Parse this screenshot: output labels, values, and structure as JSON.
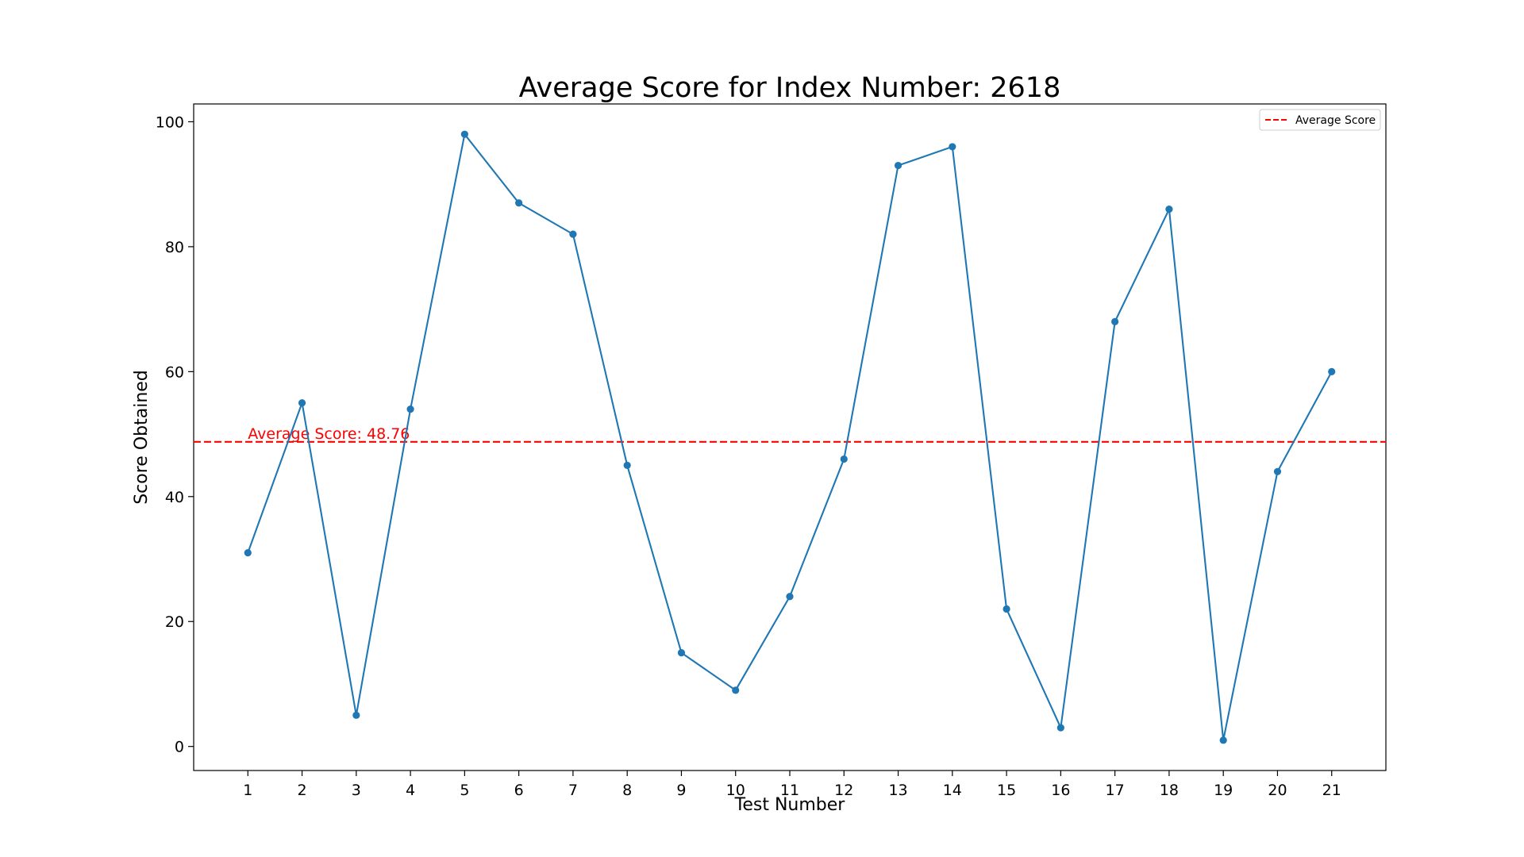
{
  "chart_data": {
    "type": "line",
    "title": "Average Score for Index Number: 2618",
    "xlabel": "Test Number",
    "ylabel": "Score Obtained",
    "x": [
      1,
      2,
      3,
      4,
      5,
      6,
      7,
      8,
      9,
      10,
      11,
      12,
      13,
      14,
      15,
      16,
      17,
      18,
      19,
      20,
      21
    ],
    "series": [
      {
        "values": [
          31,
          55,
          5,
          54,
          98,
          87,
          82,
          45,
          15,
          9,
          24,
          46,
          93,
          96,
          22,
          3,
          68,
          86,
          1,
          44,
          60
        ],
        "color": "#1f77b4",
        "marker": "circle"
      }
    ],
    "xlim": [
      0,
      22
    ],
    "ylim": [
      -3.85,
      102.85
    ],
    "xticks": [
      "1",
      "2",
      "3",
      "4",
      "5",
      "6",
      "7",
      "8",
      "9",
      "10",
      "11",
      "12",
      "13",
      "14",
      "15",
      "16",
      "17",
      "18",
      "19",
      "20",
      "21"
    ],
    "yticks": [
      "0",
      "20",
      "40",
      "60",
      "80",
      "100"
    ],
    "ytick_values": [
      0,
      20,
      40,
      60,
      80,
      100
    ],
    "average_line": {
      "value": 48.76,
      "label": "Average Score: 48.76",
      "color": "#ff0000",
      "style": "dashed"
    },
    "legend": {
      "position": "top-right",
      "entries": [
        "Average Score"
      ]
    },
    "grid": false
  }
}
